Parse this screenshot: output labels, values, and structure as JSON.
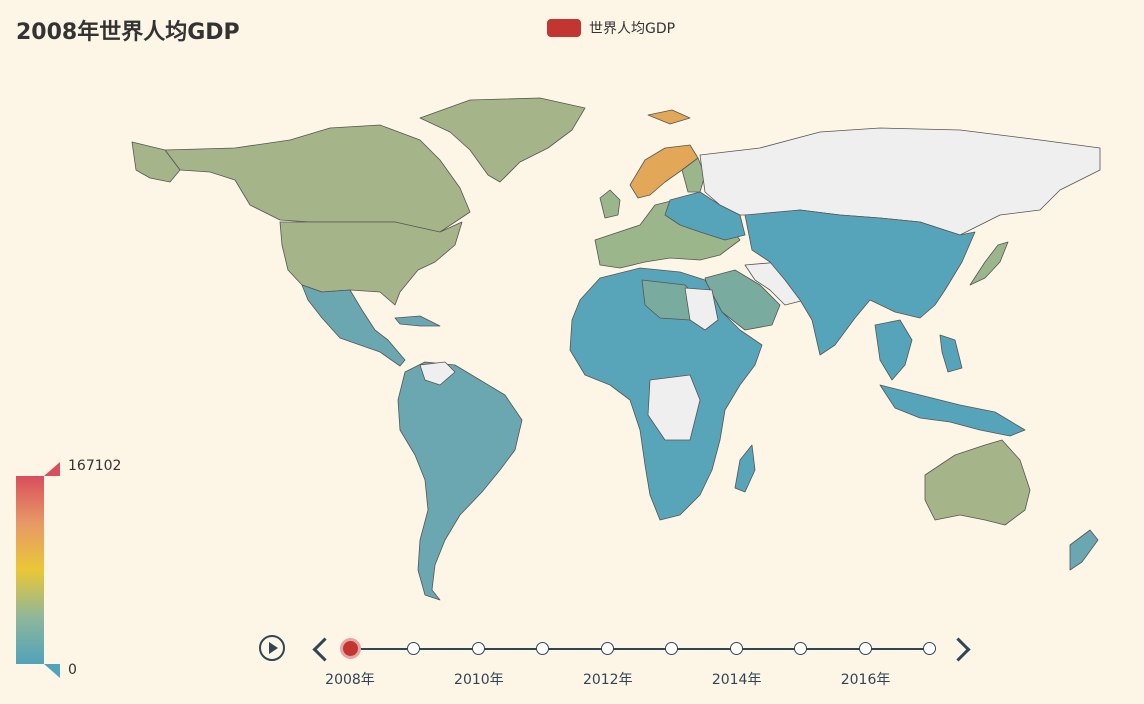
{
  "title": "2008年世界人均GDP",
  "legend": {
    "label": "世界人均GDP",
    "color": "#c23531"
  },
  "visual_map": {
    "max_label": "167102",
    "min_label": "0",
    "colors": [
      "#d94e5d",
      "#e79966",
      "#eac736",
      "#8fb79a",
      "#50a3ba"
    ]
  },
  "timeline": {
    "play_icon": "play-icon",
    "current": "2008年",
    "labels": [
      "2008年",
      "2010年",
      "2012年",
      "2014年",
      "2016年"
    ],
    "ticks": [
      "2008",
      "2009",
      "2010",
      "2011",
      "2012",
      "2013",
      "2014",
      "2015",
      "2016",
      "2017"
    ]
  },
  "map_colors": {
    "north_america": "#a6b489",
    "greenland": "#a6b489",
    "latin_america": "#6aa7b0",
    "europe": "#9cb68c",
    "scandinavia": "#e3a758",
    "russia": "#efefef",
    "africa": "#58a5ba",
    "middle_east": "#7aab9f",
    "asia": "#56a4ba",
    "japan": "#9cb68c",
    "australia": "#a6b489",
    "no_data": "#efefef",
    "border": "#555555"
  }
}
